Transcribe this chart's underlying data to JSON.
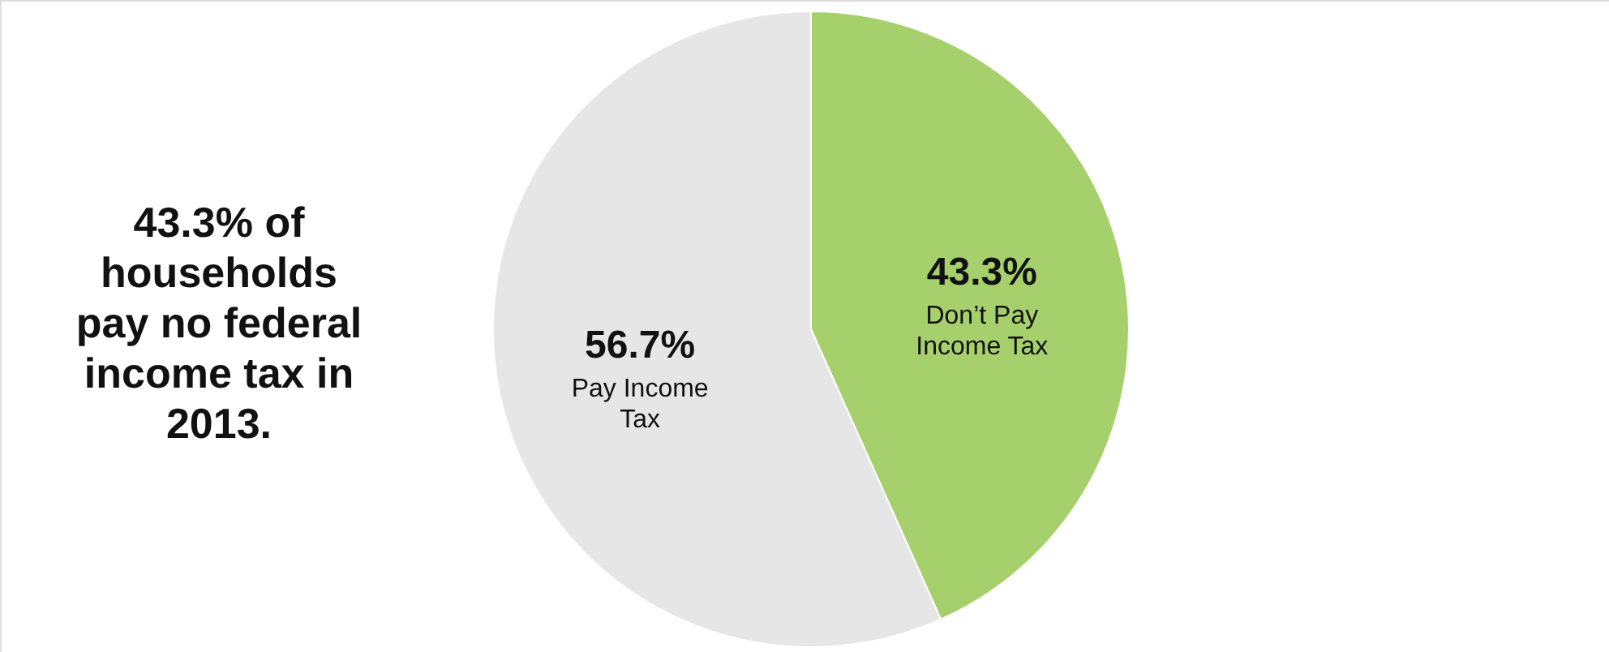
{
  "chart_data": {
    "type": "pie",
    "categories": [
      "Don’t Pay Income Tax",
      "Pay Income Tax"
    ],
    "values": [
      43.3,
      56.7
    ],
    "colors": [
      "#a6d06c",
      "#e6e6e6"
    ],
    "value_labels": [
      "43.3%",
      "56.7%"
    ],
    "annotations": [
      "43.3% of households pay no federal income tax in 2013."
    ]
  }
}
